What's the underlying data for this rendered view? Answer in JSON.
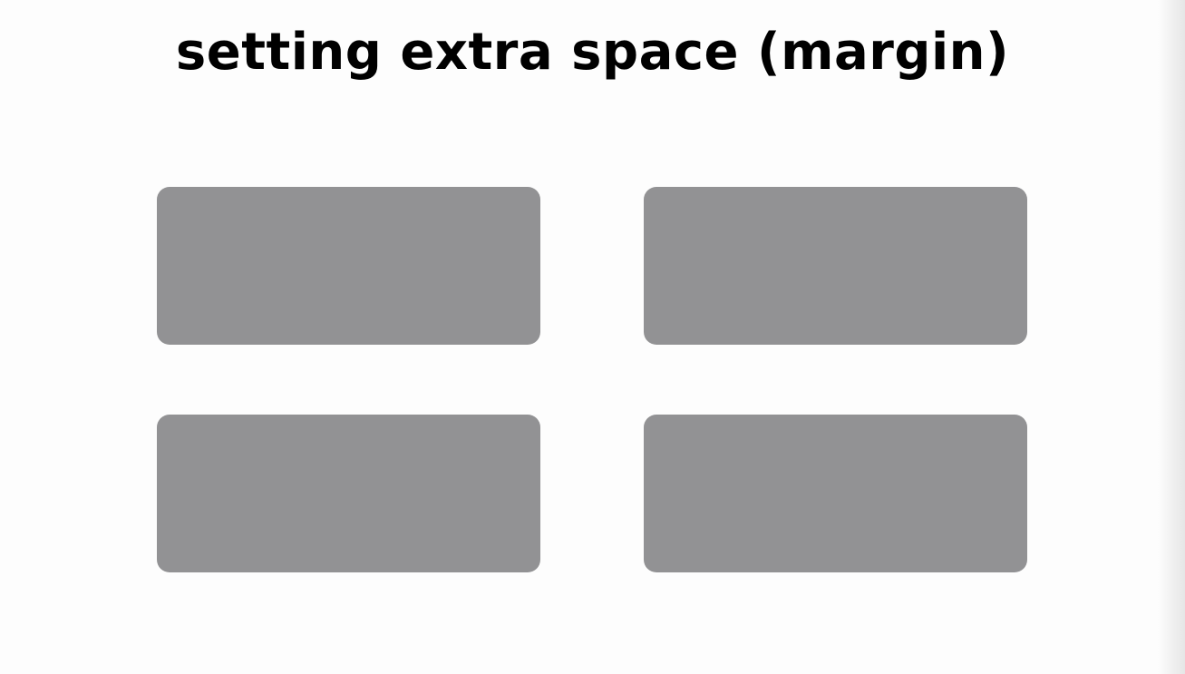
{
  "title": "setting extra space (margin)",
  "colors": {
    "background": "#fdfdfd",
    "box_fill": "#929294",
    "title_text": "#000000"
  },
  "boxes": [
    {
      "id": "box-1"
    },
    {
      "id": "box-2"
    },
    {
      "id": "box-3"
    },
    {
      "id": "box-4"
    }
  ]
}
